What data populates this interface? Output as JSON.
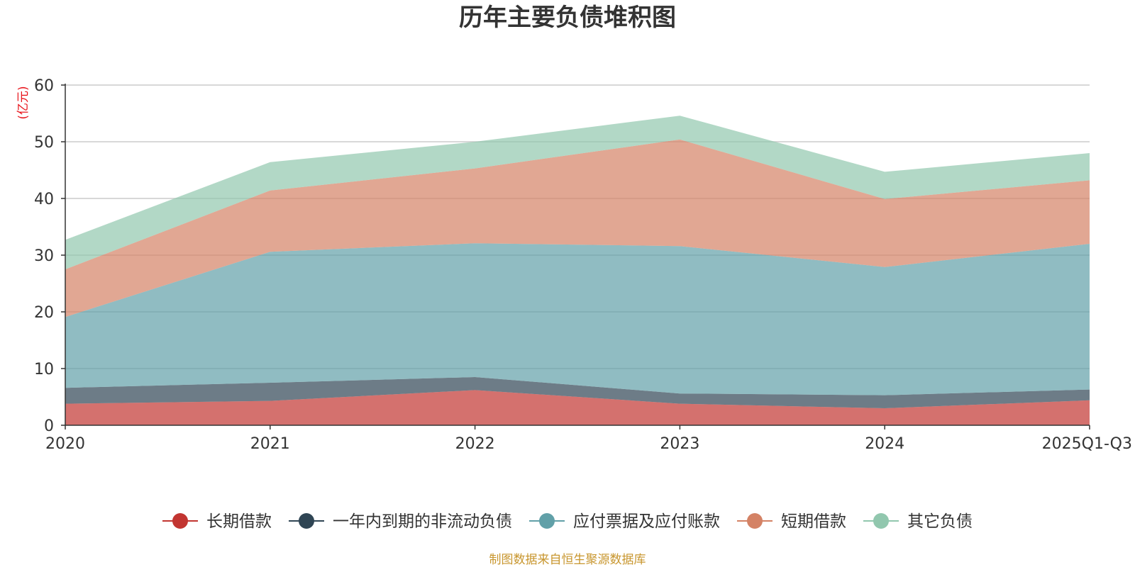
{
  "chart_data": {
    "type": "area",
    "stacked": true,
    "title": "历年主要负债堆积图",
    "ylabel": "(亿元)",
    "categories": [
      "2020",
      "2021",
      "2022",
      "2023",
      "2024",
      "2025Q1-Q3"
    ],
    "ylim": [
      0,
      60
    ],
    "yticks": [
      0,
      10,
      20,
      30,
      40,
      50,
      60
    ],
    "grid": true,
    "legend_position": "bottom",
    "series": [
      {
        "name": "长期借款",
        "color": "#c23531",
        "values": [
          3.8,
          4.3,
          6.2,
          3.8,
          3.0,
          4.4
        ]
      },
      {
        "name": "一年内到期的非流动负债",
        "color": "#2f4554",
        "values": [
          2.8,
          3.2,
          2.3,
          1.8,
          2.3,
          1.9
        ]
      },
      {
        "name": "应付票据及应付账款",
        "color": "#61a0a8",
        "values": [
          12.5,
          23.1,
          23.6,
          26.0,
          22.6,
          25.7
        ]
      },
      {
        "name": "短期借款",
        "color": "#d48265",
        "values": [
          8.4,
          10.8,
          13.2,
          18.8,
          12.0,
          11.2
        ]
      },
      {
        "name": "其它负债",
        "color": "#91c7ae",
        "values": [
          5.2,
          5.0,
          4.7,
          4.2,
          4.8,
          4.8
        ]
      }
    ],
    "source": "制图数据来自恒生聚源数据库"
  }
}
